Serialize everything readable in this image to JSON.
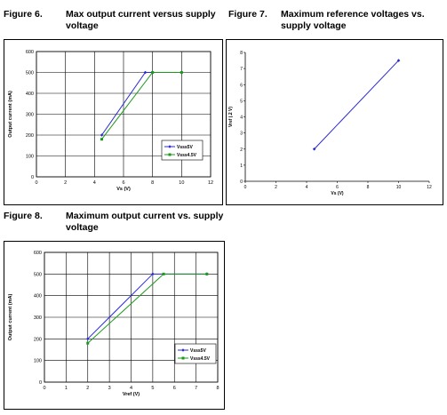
{
  "figures": [
    {
      "num": "Figure 6.",
      "title": "Max output current versus supply voltage"
    },
    {
      "num": "Figure 7.",
      "title": "Maximum reference voltages vs. supply voltage"
    },
    {
      "num": "Figure 8.",
      "title": "Maximum output current vs. supply voltage"
    }
  ],
  "colors": {
    "series1": "#2a2ad0",
    "series2": "#1a9a1a",
    "grid": "#000000"
  },
  "chart_data": [
    {
      "type": "line",
      "title": "Max output current versus supply voltage",
      "xlabel": "Vs (V)",
      "ylabel": "Output current (mA)",
      "xlim": [
        0,
        12
      ],
      "ylim": [
        0,
        600
      ],
      "xticks": [
        0,
        2,
        4,
        6,
        8,
        10,
        12
      ],
      "yticks": [
        0,
        100,
        200,
        300,
        400,
        500,
        600
      ],
      "grid": true,
      "legend": "lower-right",
      "series": [
        {
          "name": "Vsss5V",
          "x": [
            4.5,
            7.5,
            10
          ],
          "y": [
            200,
            500,
            500
          ]
        },
        {
          "name": "Vsss4.5V",
          "x": [
            4.5,
            8,
            10
          ],
          "y": [
            180,
            500,
            500
          ]
        }
      ]
    },
    {
      "type": "line",
      "title": "Maximum reference voltages vs. supply voltage",
      "xlabel": "Vs (V)",
      "ylabel": "Vref (.2 V)",
      "xlim": [
        0,
        12
      ],
      "ylim": [
        0,
        8
      ],
      "xticks": [
        0,
        2,
        4,
        6,
        8,
        10,
        12
      ],
      "yticks": [
        0,
        1,
        2,
        3,
        4,
        5,
        6,
        7,
        8
      ],
      "grid": false,
      "series": [
        {
          "x": [
            4.5,
            10
          ],
          "y": [
            2,
            7.5
          ]
        }
      ]
    },
    {
      "type": "line",
      "title": "Maximum output current vs. supply voltage",
      "xlabel": "Vref (V)",
      "ylabel": "Output current (mA)",
      "xlim": [
        0,
        8
      ],
      "ylim": [
        0,
        600
      ],
      "xticks": [
        0,
        1,
        2,
        3,
        4,
        5,
        6,
        7,
        8
      ],
      "yticks": [
        0,
        100,
        200,
        300,
        400,
        500,
        600
      ],
      "grid": true,
      "legend": "lower-right",
      "series": [
        {
          "name": "Vsss5V",
          "x": [
            2,
            5,
            7.5
          ],
          "y": [
            200,
            500,
            500
          ]
        },
        {
          "name": "Vsss4.5V",
          "x": [
            2,
            5.5,
            7.5
          ],
          "y": [
            180,
            500,
            500
          ]
        }
      ]
    }
  ]
}
